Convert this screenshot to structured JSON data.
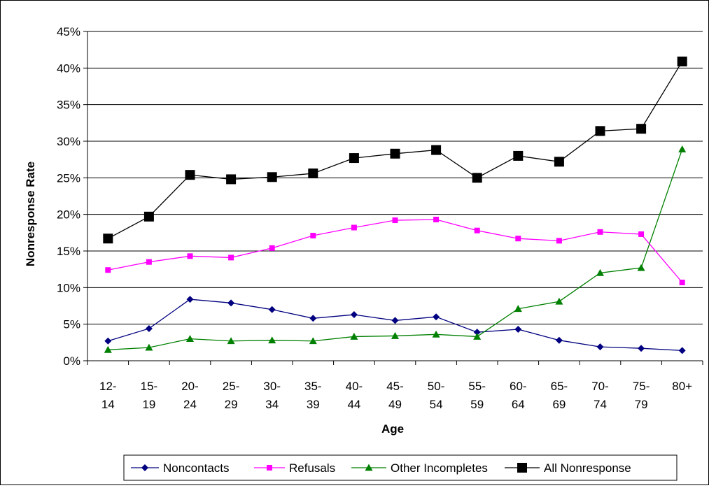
{
  "chart_data": {
    "type": "line",
    "title": "",
    "xlabel": "Age",
    "ylabel": "Nonresponse Rate",
    "ylim": [
      0,
      45
    ],
    "y_unit": "%",
    "y_ticks": [
      "0%",
      "5%",
      "10%",
      "15%",
      "20%",
      "25%",
      "30%",
      "35%",
      "40%",
      "45%"
    ],
    "y_tick_values": [
      0,
      5,
      10,
      15,
      20,
      25,
      30,
      35,
      40,
      45
    ],
    "grid": "horizontal",
    "legend_position": "bottom",
    "categories": [
      [
        "12-",
        "14"
      ],
      [
        "15-",
        "19"
      ],
      [
        "20-",
        "24"
      ],
      [
        "25-",
        "29"
      ],
      [
        "30-",
        "34"
      ],
      [
        "35-",
        "39"
      ],
      [
        "40-",
        "44"
      ],
      [
        "45-",
        "49"
      ],
      [
        "50-",
        "54"
      ],
      [
        "55-",
        "59"
      ],
      [
        "60-",
        "64"
      ],
      [
        "65-",
        "69"
      ],
      [
        "70-",
        "74"
      ],
      [
        "75-",
        "79"
      ],
      [
        "80+",
        ""
      ]
    ],
    "series": [
      {
        "name": "Noncontacts",
        "color": "#000080",
        "marker": "diamond",
        "values": [
          2.7,
          4.4,
          8.4,
          7.9,
          7.0,
          5.8,
          6.3,
          5.5,
          6.0,
          3.9,
          4.3,
          2.8,
          1.9,
          1.7,
          1.4
        ]
      },
      {
        "name": "Refusals",
        "color": "#ff00ff",
        "marker": "square",
        "values": [
          12.4,
          13.5,
          14.3,
          14.1,
          15.4,
          17.1,
          18.2,
          19.2,
          19.3,
          17.8,
          16.7,
          16.4,
          17.6,
          17.3,
          10.7
        ]
      },
      {
        "name": "Other Incompletes",
        "color": "#008000",
        "marker": "triangle",
        "values": [
          1.5,
          1.8,
          3.0,
          2.7,
          2.8,
          2.7,
          3.3,
          3.4,
          3.6,
          3.3,
          7.1,
          8.1,
          12.0,
          12.7,
          28.9
        ]
      },
      {
        "name": "All Nonresponse",
        "color": "#000000",
        "marker": "bigsquare",
        "values": [
          16.7,
          19.7,
          25.4,
          24.8,
          25.1,
          25.6,
          27.7,
          28.3,
          28.8,
          25.0,
          28.0,
          27.2,
          31.4,
          31.7,
          40.9
        ]
      }
    ]
  }
}
